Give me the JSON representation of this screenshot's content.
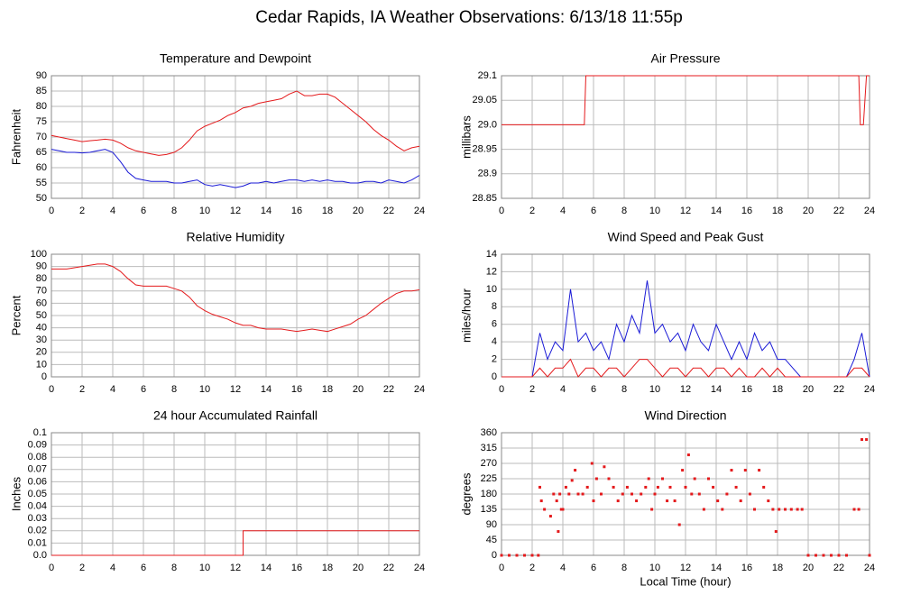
{
  "title": "Cedar Rapids, IA Weather Observations: 6/13/18 11:55p",
  "chart_data": [
    {
      "type": "line",
      "title": "Temperature and Dewpoint",
      "ylabel": "Fahrenheit",
      "xlim": [
        0,
        24
      ],
      "xticks": [
        0,
        2,
        4,
        6,
        8,
        10,
        12,
        14,
        16,
        18,
        20,
        22,
        24
      ],
      "ylim": [
        50,
        90
      ],
      "yticks": [
        50,
        55,
        60,
        65,
        70,
        75,
        80,
        85,
        90
      ],
      "grid": true,
      "x": [
        0,
        0.5,
        1,
        1.5,
        2,
        2.5,
        3,
        3.5,
        4,
        4.5,
        5,
        5.5,
        6,
        6.5,
        7,
        7.5,
        8,
        8.5,
        9,
        9.5,
        10,
        10.5,
        11,
        11.5,
        12,
        12.5,
        13,
        13.5,
        14,
        14.5,
        15,
        15.5,
        16,
        16.5,
        17,
        17.5,
        18,
        18.5,
        19,
        19.5,
        20,
        20.5,
        21,
        21.5,
        22,
        22.5,
        23,
        23.5,
        24
      ],
      "series": [
        {
          "color": "#e41a1c",
          "values": [
            70.5,
            70,
            69.5,
            69,
            68.5,
            68.8,
            69,
            69.3,
            69,
            68,
            66.5,
            65.5,
            65,
            64.5,
            64,
            64.3,
            65,
            66.5,
            69,
            72,
            73.5,
            74.5,
            75.5,
            77,
            78,
            79.5,
            80,
            81,
            81.5,
            82,
            82.5,
            84,
            85,
            83.5,
            83.5,
            84,
            84,
            83,
            81,
            79,
            77,
            75,
            72.5,
            70.5,
            69,
            67,
            65.5,
            66.5,
            67
          ]
        },
        {
          "color": "#1a1ad6",
          "values": [
            66,
            65.5,
            65,
            65,
            64.8,
            65,
            65.5,
            66,
            65,
            62,
            58.5,
            56.5,
            56,
            55.5,
            55.5,
            55.5,
            55,
            55,
            55.5,
            56,
            54.5,
            54,
            54.5,
            54,
            53.5,
            54,
            55,
            55,
            55.5,
            55,
            55.5,
            56,
            56,
            55.5,
            56,
            55.5,
            56,
            55.5,
            55.5,
            55,
            55,
            55.5,
            55.5,
            55,
            56,
            55.5,
            55,
            56,
            57.5
          ]
        }
      ]
    },
    {
      "type": "line",
      "title": "Air Pressure",
      "ylabel": "millibars",
      "xlim": [
        0,
        24
      ],
      "xticks": [
        0,
        2,
        4,
        6,
        8,
        10,
        12,
        14,
        16,
        18,
        20,
        22,
        24
      ],
      "ylim": [
        28.85,
        29.1
      ],
      "yticks": [
        28.85,
        28.9,
        28.95,
        {
          "value": 29,
          "label": "29.0"
        },
        29.05,
        29.1
      ],
      "grid": true,
      "x": [
        0,
        5.4,
        5.5,
        23.3,
        23.4,
        23.6,
        23.8,
        24
      ],
      "series": [
        {
          "color": "#e41a1c",
          "values": [
            29,
            29,
            29.1,
            29.1,
            29,
            29,
            29.1,
            29.1
          ]
        }
      ]
    },
    {
      "type": "line",
      "title": "Relative Humidity",
      "ylabel": "Percent",
      "xlim": [
        0,
        24
      ],
      "xticks": [
        0,
        2,
        4,
        6,
        8,
        10,
        12,
        14,
        16,
        18,
        20,
        22,
        24
      ],
      "ylim": [
        0,
        100
      ],
      "yticks": [
        0,
        10,
        20,
        30,
        40,
        50,
        60,
        70,
        80,
        90,
        100
      ],
      "grid": true,
      "x": [
        0,
        0.5,
        1,
        1.5,
        2,
        2.5,
        3,
        3.5,
        4,
        4.5,
        5,
        5.5,
        6,
        6.5,
        7,
        7.5,
        8,
        8.5,
        9,
        9.5,
        10,
        10.5,
        11,
        11.5,
        12,
        12.5,
        13,
        13.5,
        14,
        14.5,
        15,
        15.5,
        16,
        16.5,
        17,
        17.5,
        18,
        18.5,
        19,
        19.5,
        20,
        20.5,
        21,
        21.5,
        22,
        22.5,
        23,
        23.5,
        24
      ],
      "series": [
        {
          "color": "#e41a1c",
          "values": [
            88,
            88,
            88,
            89,
            90,
            91,
            92,
            92,
            90,
            86,
            80,
            75,
            74,
            74,
            74,
            74,
            72,
            70,
            65,
            58,
            54,
            51,
            49,
            47,
            44,
            42,
            42,
            40,
            39,
            39,
            39,
            38,
            37,
            38,
            39,
            38,
            37,
            39,
            41,
            43,
            47,
            50,
            55,
            60,
            64,
            68,
            70,
            70,
            71
          ]
        }
      ]
    },
    {
      "type": "line",
      "title": "Wind Speed and Peak Gust",
      "ylabel": "miles/hour",
      "xlim": [
        0,
        24
      ],
      "xticks": [
        0,
        2,
        4,
        6,
        8,
        10,
        12,
        14,
        16,
        18,
        20,
        22,
        24
      ],
      "ylim": [
        0,
        14
      ],
      "yticks": [
        0,
        2,
        4,
        6,
        8,
        10,
        12,
        14
      ],
      "grid": true,
      "x": [
        0,
        0.5,
        1,
        1.5,
        2,
        2.5,
        3,
        3.5,
        4,
        4.5,
        5,
        5.5,
        6,
        6.5,
        7,
        7.5,
        8,
        8.5,
        9,
        9.5,
        10,
        10.5,
        11,
        11.5,
        12,
        12.5,
        13,
        13.5,
        14,
        14.5,
        15,
        15.5,
        16,
        16.5,
        17,
        17.5,
        18,
        18.5,
        19,
        19.5,
        20,
        20.5,
        21,
        21.5,
        22,
        22.5,
        23,
        23.5,
        24
      ],
      "series": [
        {
          "color": "#1a1ad6",
          "values": [
            0,
            0,
            0,
            0,
            0,
            5,
            2,
            4,
            3,
            10,
            4,
            5,
            3,
            4,
            2,
            6,
            4,
            7,
            5,
            11,
            5,
            6,
            4,
            5,
            3,
            6,
            4,
            3,
            6,
            4,
            2,
            4,
            2,
            5,
            3,
            4,
            2,
            2,
            1,
            0,
            0,
            0,
            0,
            0,
            0,
            0,
            2,
            5,
            0
          ]
        },
        {
          "color": "#e41a1c",
          "values": [
            0,
            0,
            0,
            0,
            0,
            1,
            0,
            1,
            1,
            2,
            0,
            1,
            1,
            0,
            1,
            1,
            0,
            1,
            2,
            2,
            1,
            0,
            1,
            1,
            0,
            1,
            1,
            0,
            1,
            1,
            0,
            1,
            0,
            0,
            1,
            0,
            1,
            0,
            0,
            0,
            0,
            0,
            0,
            0,
            0,
            0,
            1,
            1,
            0
          ]
        }
      ]
    },
    {
      "type": "line",
      "title": "24 hour Accumulated Rainfall",
      "ylabel": "Inches",
      "xlim": [
        0,
        24
      ],
      "xticks": [
        0,
        2,
        4,
        6,
        8,
        10,
        12,
        14,
        16,
        18,
        20,
        22,
        24
      ],
      "ylim": [
        0,
        0.1
      ],
      "yticks": [
        {
          "value": 0,
          "label": "0.0"
        },
        0.01,
        0.02,
        0.03,
        0.04,
        0.05,
        0.06,
        0.07,
        0.08,
        0.09,
        0.1
      ],
      "grid": true,
      "x": [
        0,
        12.5,
        12.5,
        24
      ],
      "series": [
        {
          "color": "#e41a1c",
          "values": [
            0,
            0,
            0.02,
            0.02
          ]
        }
      ]
    },
    {
      "type": "scatter",
      "title": "Wind Direction",
      "ylabel": "degrees",
      "xlabel": "Local Time (hour)",
      "xlim": [
        0,
        24
      ],
      "xticks": [
        0,
        2,
        4,
        6,
        8,
        10,
        12,
        14,
        16,
        18,
        20,
        22,
        24
      ],
      "ylim": [
        0,
        360
      ],
      "yticks": [
        0,
        45,
        90,
        135,
        180,
        225,
        270,
        315,
        360
      ],
      "grid": true,
      "x": [
        0,
        0.5,
        1,
        1.5,
        2,
        2.4,
        2.5,
        2.6,
        2.8,
        3.2,
        3.4,
        3.6,
        3.7,
        3.8,
        3.9,
        4,
        4.2,
        4.4,
        4.6,
        4.8,
        5,
        5.3,
        5.6,
        5.9,
        6,
        6.2,
        6.5,
        6.7,
        7,
        7.3,
        7.6,
        7.9,
        8.2,
        8.5,
        8.8,
        9.1,
        9.4,
        9.6,
        9.8,
        10,
        10.2,
        10.5,
        10.8,
        11,
        11.3,
        11.6,
        11.8,
        12,
        12.2,
        12.4,
        12.6,
        12.9,
        13.2,
        13.5,
        13.8,
        14.1,
        14.4,
        14.7,
        15,
        15.3,
        15.6,
        15.9,
        16.2,
        16.5,
        16.8,
        17.1,
        17.4,
        17.7,
        17.9,
        18.1,
        18.5,
        18.9,
        19.3,
        19.6,
        20,
        20.5,
        21,
        21.5,
        22,
        22.5,
        23,
        23.3,
        23.5,
        23.8,
        24
      ],
      "series": [
        {
          "color": "#e41a1c",
          "values": [
            0,
            0,
            0,
            0,
            0,
            0,
            200,
            160,
            135,
            115,
            180,
            160,
            70,
            180,
            135,
            135,
            200,
            180,
            220,
            250,
            180,
            180,
            200,
            270,
            160,
            225,
            180,
            260,
            225,
            200,
            160,
            180,
            200,
            180,
            160,
            180,
            200,
            225,
            135,
            180,
            200,
            225,
            160,
            200,
            160,
            90,
            250,
            200,
            295,
            180,
            225,
            180,
            135,
            225,
            200,
            160,
            135,
            180,
            250,
            200,
            160,
            250,
            180,
            135,
            250,
            200,
            160,
            135,
            70,
            135,
            135,
            135,
            135,
            135,
            0,
            0,
            0,
            0,
            0,
            0,
            135,
            135,
            340,
            340,
            0
          ]
        }
      ]
    }
  ]
}
